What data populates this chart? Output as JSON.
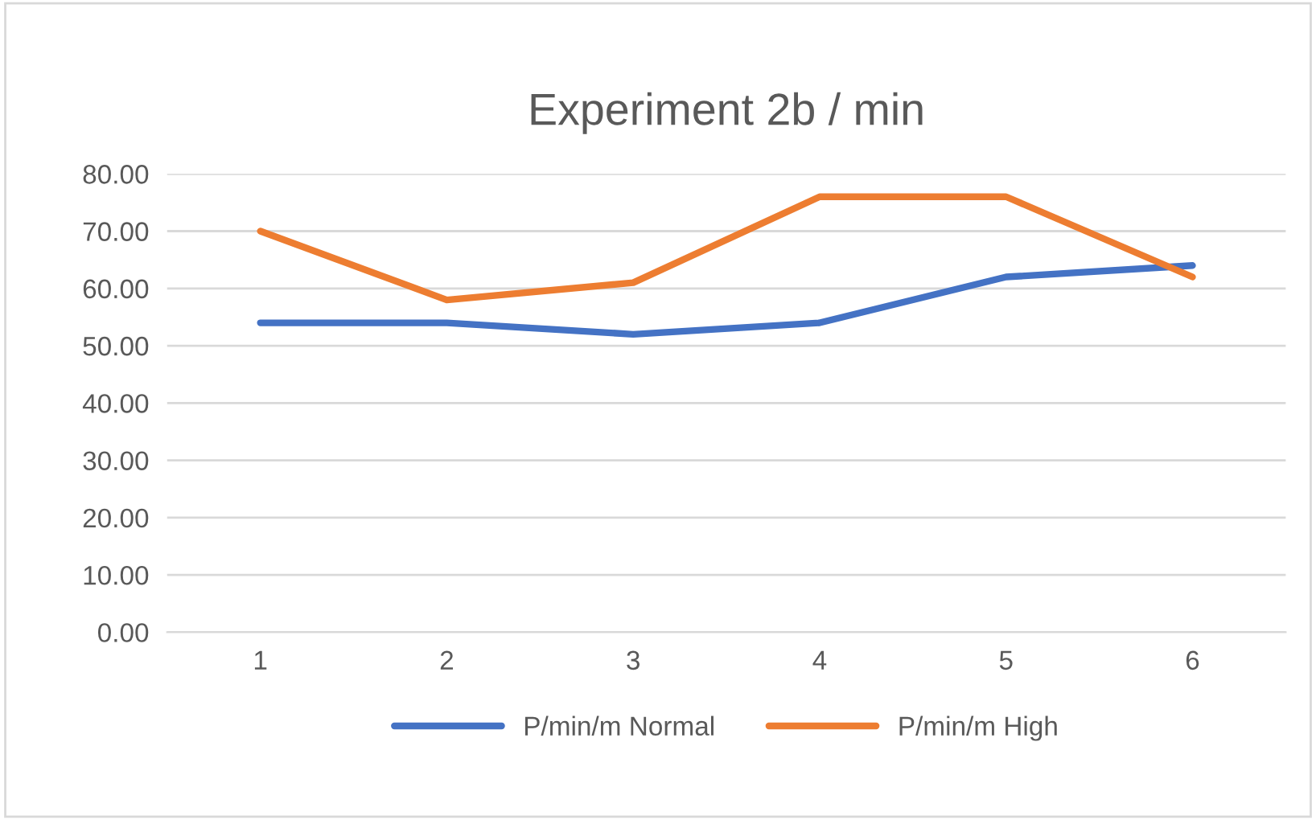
{
  "chart_data": {
    "type": "line",
    "title": "Experiment 2b / min",
    "categories": [
      "1",
      "2",
      "3",
      "4",
      "5",
      "6"
    ],
    "series": [
      {
        "name": "P/min/m Normal",
        "color": "#4472c4",
        "values": [
          54,
          54,
          52,
          54,
          62,
          64
        ]
      },
      {
        "name": "P/min/m High",
        "color": "#ed7d31",
        "values": [
          70,
          58,
          61,
          76,
          76,
          62
        ]
      }
    ],
    "ylim": [
      0,
      80
    ],
    "yticks": [
      {
        "value": 0,
        "label": "0.00"
      },
      {
        "value": 10,
        "label": "10.00"
      },
      {
        "value": 20,
        "label": "20.00"
      },
      {
        "value": 30,
        "label": "30.00"
      },
      {
        "value": 40,
        "label": "40.00"
      },
      {
        "value": 50,
        "label": "50.00"
      },
      {
        "value": 60,
        "label": "60.00"
      },
      {
        "value": 70,
        "label": "70.00"
      },
      {
        "value": 80,
        "label": "80.00"
      }
    ],
    "grid": "y",
    "legend": "bottom",
    "marker": "none",
    "line_style": "solid"
  }
}
